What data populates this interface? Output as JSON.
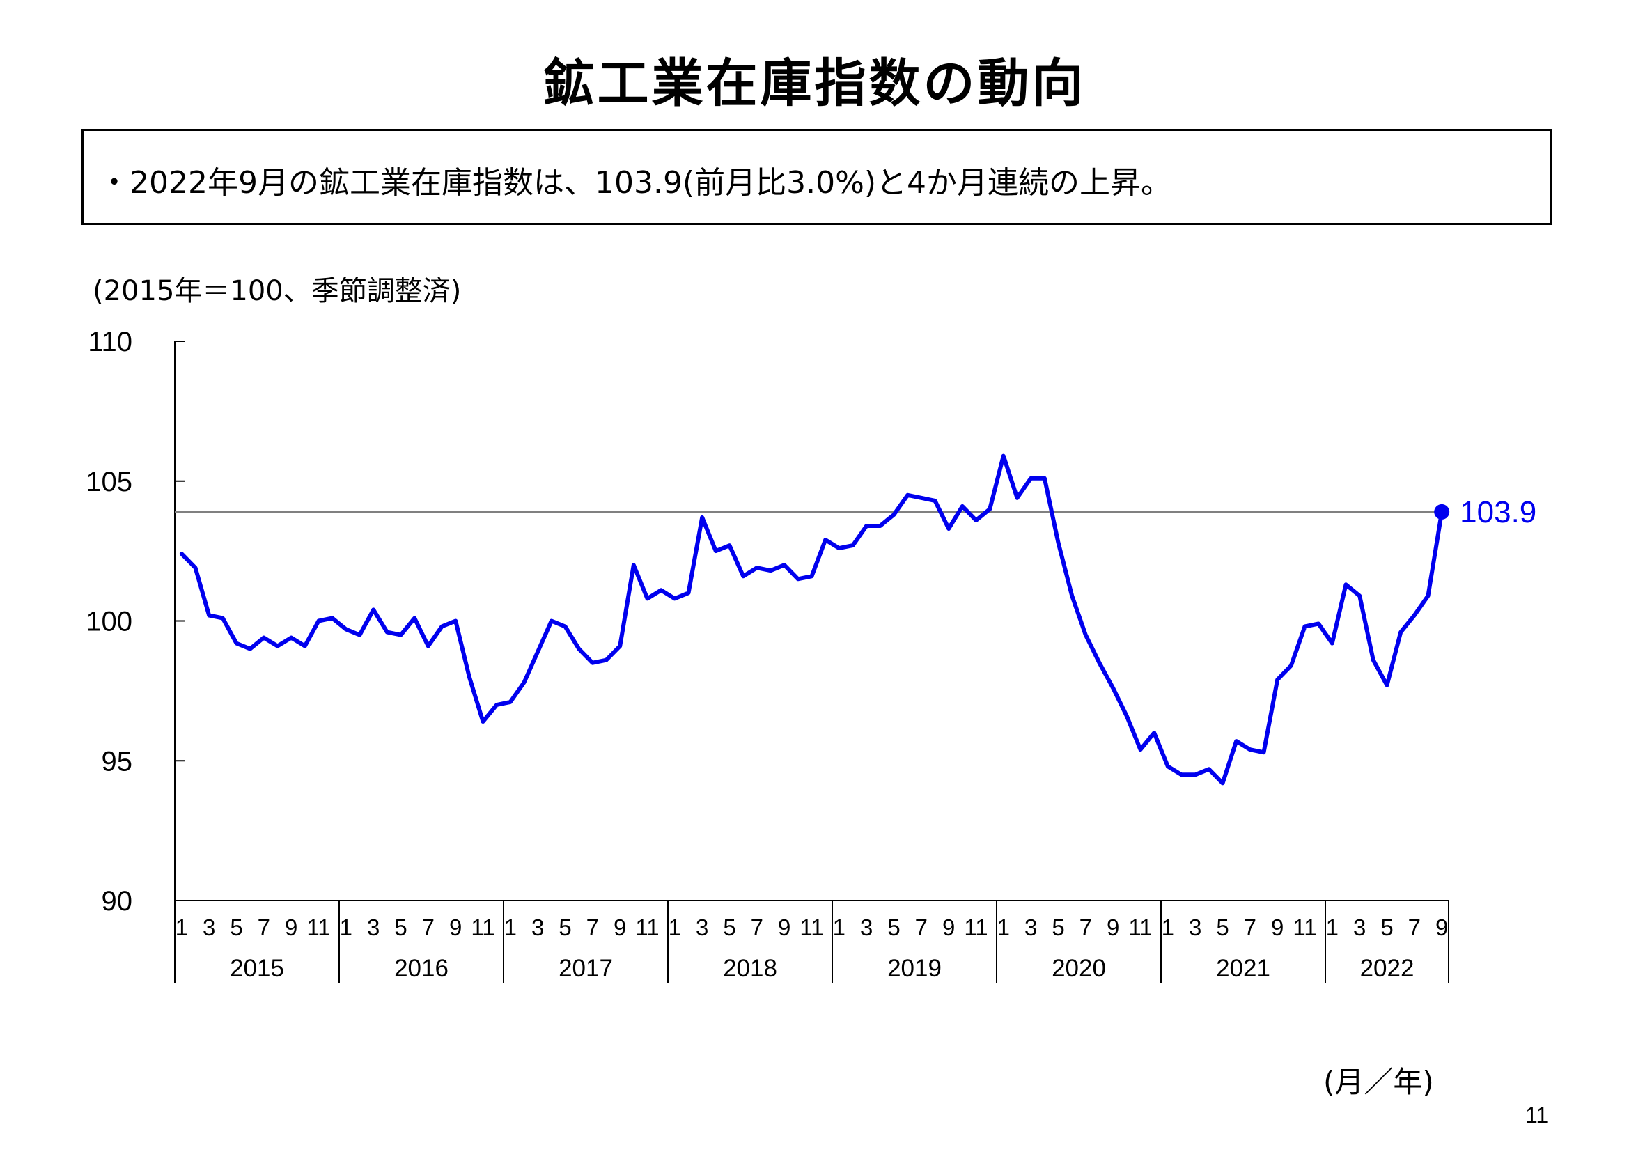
{
  "page": {
    "title": "鉱工業在庫指数の動向",
    "summary": "・2022年9月の鉱工業在庫指数は、103.9(前月比3.0%)と4か月連続の上昇。",
    "unit_note": "(2015年＝100、季節調整済)",
    "x_unit": "(月／年)",
    "page_number": "11"
  },
  "colors": {
    "series": "#0000ee",
    "reference_line": "#808080",
    "axis": "#000000"
  },
  "chart_data": {
    "type": "line",
    "ylim": [
      90,
      110
    ],
    "yticks": [
      90,
      95,
      100,
      105,
      110
    ],
    "month_tick_labels": [
      "1",
      "3",
      "5",
      "7",
      "9",
      "11"
    ],
    "years": [
      "2015",
      "2016",
      "2017",
      "2018",
      "2019",
      "2020",
      "2021",
      "2022"
    ],
    "last_year_month_tick_labels": [
      "1",
      "3",
      "5",
      "7",
      "9"
    ],
    "reference_value": 103.9,
    "end_label": "103.9",
    "series": [
      {
        "values": [
          102.4,
          101.9,
          100.2,
          100.1,
          99.2,
          99.0,
          99.4,
          99.1,
          99.4,
          99.1,
          100.0,
          100.1,
          99.7,
          99.5,
          100.4,
          99.6,
          99.5,
          100.1,
          99.1,
          99.8,
          100.0,
          98.0,
          96.4,
          97.0,
          97.1,
          97.8,
          98.9,
          100.0,
          99.8,
          99.0,
          98.5,
          98.6,
          99.1,
          102.0,
          100.8,
          101.1,
          100.8,
          101.0,
          103.7,
          102.5,
          102.7,
          101.6,
          101.9,
          101.8,
          102.0,
          101.5,
          101.6,
          102.9,
          102.6,
          102.7,
          103.4,
          103.4,
          103.8,
          104.5,
          104.4,
          104.3,
          103.3,
          104.1,
          103.6,
          104.0,
          105.9,
          104.4,
          105.1,
          105.1,
          102.8,
          100.9,
          99.5,
          98.5,
          97.6,
          96.6,
          95.4,
          96.0,
          94.8,
          94.5,
          94.5,
          94.7,
          94.2,
          95.7,
          95.4,
          95.3,
          97.9,
          98.4,
          99.8,
          99.9,
          99.2,
          101.3,
          100.9,
          98.6,
          97.7,
          99.6,
          100.2,
          100.9,
          103.9
        ]
      }
    ]
  }
}
